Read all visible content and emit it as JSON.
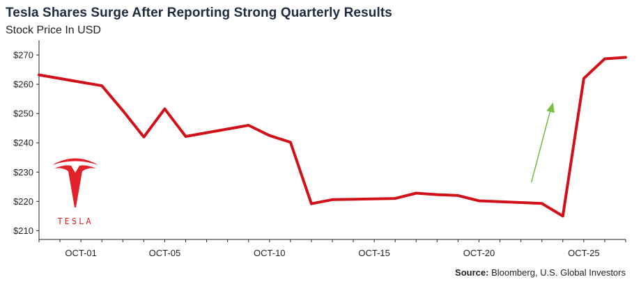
{
  "chart_data": {
    "type": "line",
    "title": "Tesla Shares Surge After Reporting Strong Quarterly Results",
    "subtitle": "Stock Price In USD",
    "source_label": "Source:",
    "source_text": "Bloomberg, U.S. Global Investors",
    "x": [
      "2023-09-29",
      "2023-10-02",
      "2023-10-03",
      "2023-10-04",
      "2023-10-05",
      "2023-10-06",
      "2023-10-09",
      "2023-10-10",
      "2023-10-11",
      "2023-10-12",
      "2023-10-13",
      "2023-10-16",
      "2023-10-17",
      "2023-10-18",
      "2023-10-19",
      "2023-10-20",
      "2023-10-23",
      "2023-10-24",
      "2023-10-25",
      "2023-10-26",
      "2023-10-27"
    ],
    "y_values": [
      263.2,
      259.5,
      251.0,
      242.0,
      251.6,
      242.2,
      246.0,
      242.5,
      240.2,
      219.2,
      220.6,
      221.0,
      222.8,
      222.3,
      222.0,
      220.2,
      219.3,
      215.0,
      262.0,
      268.7,
      269.2
    ],
    "x_tick_labels": [
      "OCT-01",
      "OCT-05",
      "OCT-10",
      "OCT-15",
      "OCT-20",
      "OCT-25"
    ],
    "y_tick_labels": [
      "$210",
      "$220",
      "$230",
      "$240",
      "$250",
      "$260",
      "$270"
    ],
    "y_ticks": [
      210,
      220,
      230,
      240,
      250,
      260,
      270
    ],
    "ylim": [
      207,
      275
    ],
    "grid": false,
    "legend": "none",
    "line_color": "#d0111a",
    "arrow_color": "#7cbd48",
    "logo_text": "TESLA",
    "logo_color": "#e32129"
  }
}
